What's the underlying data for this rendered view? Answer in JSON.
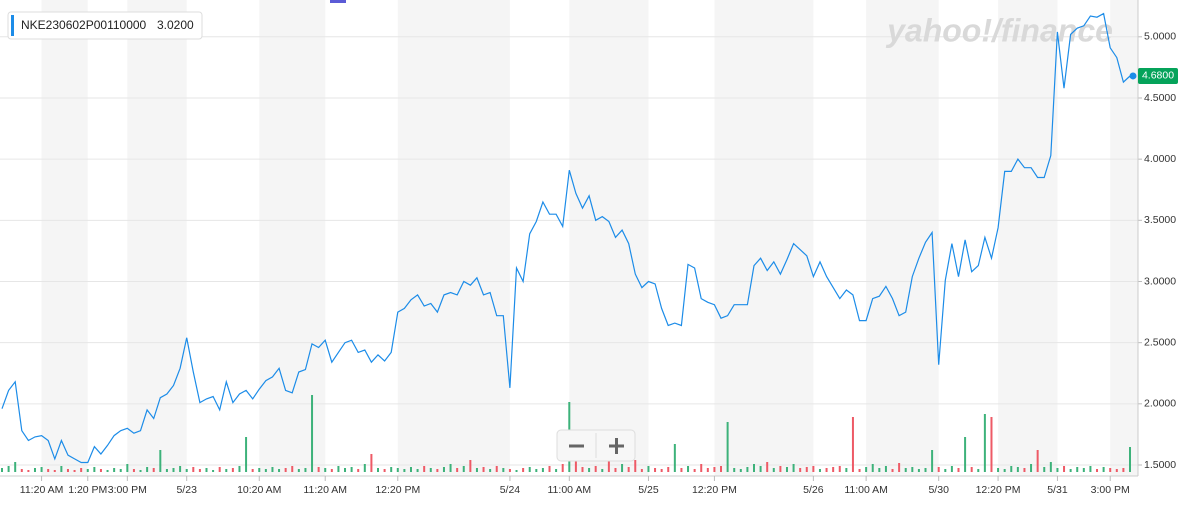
{
  "chart_data": {
    "type": "line",
    "watermark": "yahoo!/finance",
    "series": [
      {
        "name": "NKE230602P00110000",
        "color": "#1c8ce8",
        "legend_price": {
          "value": 3.02,
          "label": "3.0200"
        },
        "last_price": {
          "value": 4.68,
          "label": "4.6800"
        },
        "last_price_color": "#05a35a",
        "values": [
          1.96,
          2.11,
          2.18,
          1.78,
          1.7,
          1.73,
          1.74,
          1.7,
          1.55,
          1.7,
          1.58,
          1.55,
          1.52,
          1.52,
          1.65,
          1.59,
          1.66,
          1.74,
          1.78,
          1.8,
          1.76,
          1.78,
          1.95,
          1.88,
          2.05,
          2.08,
          2.15,
          2.29,
          2.54,
          2.26,
          2.01,
          2.04,
          2.06,
          1.95,
          2.18,
          2.01,
          2.08,
          2.11,
          2.04,
          2.12,
          2.19,
          2.22,
          2.29,
          2.11,
          2.09,
          2.26,
          2.28,
          2.49,
          2.46,
          2.52,
          2.34,
          2.42,
          2.5,
          2.52,
          2.42,
          2.44,
          2.34,
          2.4,
          2.35,
          2.42,
          2.75,
          2.78,
          2.85,
          2.89,
          2.8,
          2.82,
          2.75,
          2.89,
          2.91,
          2.89,
          3.0,
          2.97,
          3.03,
          2.89,
          2.91,
          2.72,
          2.72,
          2.13,
          3.11,
          3.0,
          3.39,
          3.49,
          3.65,
          3.55,
          3.55,
          3.45,
          3.91,
          3.72,
          3.6,
          3.7,
          3.5,
          3.53,
          3.49,
          3.36,
          3.42,
          3.31,
          3.06,
          2.95,
          3.0,
          2.98,
          2.78,
          2.64,
          2.66,
          2.64,
          3.14,
          3.11,
          2.86,
          2.83,
          2.81,
          2.7,
          2.72,
          2.81,
          2.81,
          2.81,
          3.13,
          3.19,
          3.09,
          3.16,
          3.06,
          3.18,
          3.31,
          3.26,
          3.21,
          3.04,
          3.16,
          3.04,
          2.95,
          2.86,
          2.93,
          2.89,
          2.68,
          2.68,
          2.86,
          2.88,
          2.96,
          2.86,
          2.72,
          2.75,
          3.04,
          3.19,
          3.32,
          3.4,
          2.32,
          3.01,
          3.31,
          3.04,
          3.34,
          3.08,
          3.13,
          3.36,
          3.19,
          3.44,
          3.9,
          3.9,
          4.0,
          3.93,
          3.93,
          3.85,
          3.85,
          4.03,
          5.04,
          4.58,
          5.02,
          5.07,
          5.09,
          5.17,
          5.16,
          5.19,
          4.91,
          4.83,
          4.63,
          4.68
        ]
      }
    ],
    "volume": {
      "up_color": "#3db27a",
      "down_color": "#ee5a66",
      "y2lim": [
        0,
        80
      ],
      "values": [
        4,
        6,
        10,
        3,
        2,
        4,
        5,
        3,
        2,
        6,
        3,
        2,
        4,
        3,
        5,
        3,
        2,
        4,
        3,
        8,
        3,
        2,
        5,
        4,
        22,
        3,
        4,
        6,
        3,
        5,
        3,
        4,
        2,
        5,
        3,
        4,
        6,
        35,
        3,
        4,
        3,
        5,
        3,
        4,
        6,
        3,
        4,
        77,
        5,
        4,
        3,
        6,
        4,
        5,
        3,
        8,
        18,
        4,
        3,
        5,
        4,
        3,
        5,
        3,
        6,
        4,
        3,
        5,
        8,
        4,
        6,
        12,
        4,
        5,
        3,
        6,
        4,
        3,
        2,
        4,
        5,
        3,
        4,
        6,
        3,
        8,
        70,
        12,
        5,
        4,
        6,
        3,
        22,
        4,
        8,
        5,
        12,
        3,
        6,
        4,
        3,
        5,
        28,
        4,
        6,
        3,
        8,
        4,
        5,
        6,
        50,
        4,
        3,
        5,
        8,
        6,
        10,
        4,
        6,
        5,
        8,
        4,
        5,
        6,
        3,
        4,
        5,
        6,
        4,
        55,
        3,
        5,
        8,
        4,
        6,
        3,
        9,
        4,
        5,
        3,
        4,
        22,
        5,
        3,
        6,
        4,
        35,
        5,
        3,
        58,
        55,
        4,
        3,
        6,
        5,
        4,
        8,
        22,
        5,
        10,
        4,
        6,
        3,
        5,
        4,
        6,
        3,
        5,
        4,
        3,
        4,
        25
      ]
    },
    "xlim": [
      0,
      171
    ],
    "xticks": [
      {
        "value": 6,
        "label": "11:20 AM"
      },
      {
        "value": 13,
        "label": "1:20 PM"
      },
      {
        "value": 19,
        "label": "3:00 PM"
      },
      {
        "value": 28,
        "label": "5/23"
      },
      {
        "value": 39,
        "label": "10:20 AM"
      },
      {
        "value": 49,
        "label": "11:20 AM"
      },
      {
        "value": 60,
        "label": "12:20 PM"
      },
      {
        "value": 77,
        "label": "5/24"
      },
      {
        "value": 86,
        "label": "11:00 AM"
      },
      {
        "value": 98,
        "label": "5/25"
      },
      {
        "value": 108,
        "label": "12:20 PM"
      },
      {
        "value": 123,
        "label": "5/26"
      },
      {
        "value": 131,
        "label": "11:00 AM"
      },
      {
        "value": 142,
        "label": "5/30"
      },
      {
        "value": 151,
        "label": "12:20 PM"
      },
      {
        "value": 160,
        "label": "5/31"
      },
      {
        "value": 168,
        "label": "3:00 PM"
      }
    ],
    "ylim": [
      1.41,
      5.26
    ],
    "yticks": [
      {
        "value": 1.5,
        "label": "1.5000"
      },
      {
        "value": 2,
        "label": "2.0000"
      },
      {
        "value": 2.5,
        "label": "2.5000"
      },
      {
        "value": 3,
        "label": "3.0000"
      },
      {
        "value": 3.5,
        "label": "3.5000"
      },
      {
        "value": 4,
        "label": "4.0000"
      },
      {
        "value": 4.5,
        "label": "4.5000"
      },
      {
        "value": 5,
        "label": "5.0000"
      }
    ],
    "grid": true
  }
}
